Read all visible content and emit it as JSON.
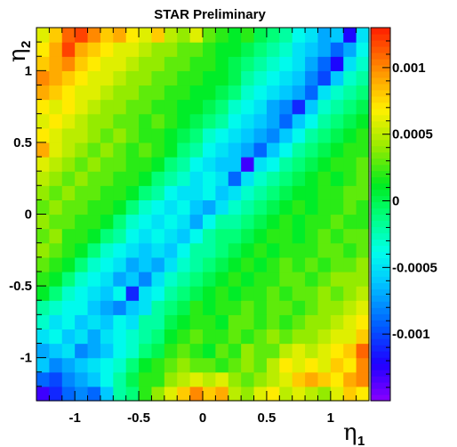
{
  "chart_data": {
    "type": "heatmap",
    "title": "STAR Preliminary",
    "xlabel": {
      "symbol": "η",
      "sub": "1"
    },
    "ylabel": {
      "symbol": "η",
      "sub": "2"
    },
    "xlim": [
      -1.3,
      1.3
    ],
    "ylim": [
      -1.3,
      1.3
    ],
    "xticks": [
      -1,
      -0.5,
      0,
      0.5,
      1
    ],
    "xtick_labels": [
      "-1",
      "-0.5",
      "0",
      "0.5",
      "1"
    ],
    "yticks": [
      -1,
      -0.5,
      0,
      0.5,
      1
    ],
    "ytick_labels": [
      "-1",
      "-0.5",
      "0",
      "0.5",
      "1"
    ],
    "zlim": [
      -0.0015,
      0.0013
    ],
    "colorbar_ticks": [
      0.001,
      0.0005,
      0,
      -0.0005,
      -0.001
    ],
    "colorbar_labels": [
      "0.001",
      "0.0005",
      "0",
      "-0.0005",
      "-0.001"
    ],
    "nbins": 26,
    "grid": false,
    "values_note": "ROOT COLZ 26x26, rows from eta2 = -1.3 (bottom) upward",
    "rows": [
      [
        -0.0013,
        -0.0011,
        -0.0009,
        -0.0008,
        -0.0009,
        -0.0006,
        -0.0002,
        -0.0001,
        0.0002,
        0.0004,
        0.0006,
        0.0008,
        0.001,
        0.0008,
        0.0009,
        0.0005,
        0.0004,
        0.0006,
        0.0007,
        0.0005,
        0.0006,
        0.0005,
        0.0004,
        0.0006,
        0.0008,
        0.0007
      ],
      [
        -0.0009,
        -0.001,
        -0.0008,
        -0.0007,
        -0.0006,
        -0.0004,
        -0.0002,
        0.0,
        0.0002,
        0.0002,
        0.0004,
        0.0005,
        0.0006,
        0.0005,
        0.0006,
        0.0004,
        0.0003,
        0.0004,
        0.0005,
        0.0006,
        0.0008,
        0.0009,
        0.0008,
        0.0007,
        0.0009,
        0.001
      ],
      [
        -0.0006,
        -0.0008,
        -0.0007,
        -0.0006,
        -0.0005,
        -0.0004,
        -0.0003,
        -0.0001,
        0.0001,
        0.0002,
        0.0003,
        0.0004,
        0.0003,
        0.0003,
        0.0002,
        0.0003,
        0.0004,
        0.0003,
        0.0005,
        0.0007,
        0.0006,
        0.0007,
        0.0006,
        0.0008,
        0.0007,
        0.001
      ],
      [
        -0.0007,
        -0.0006,
        -0.0005,
        -0.0008,
        -0.0007,
        -0.0006,
        -0.0004,
        -0.0003,
        -0.0001,
        0.0,
        0.0002,
        0.0003,
        0.0002,
        0.0001,
        0.0003,
        0.0002,
        0.0004,
        0.0003,
        0.0003,
        0.0005,
        0.0006,
        0.0005,
        0.0006,
        0.0007,
        0.0008,
        0.0011
      ],
      [
        -0.0005,
        -0.0004,
        -0.0006,
        -0.0005,
        -0.0007,
        -0.0005,
        -0.0004,
        -0.0003,
        -0.0002,
        -0.0001,
        0.0001,
        0.0002,
        0.0003,
        0.0002,
        0.0002,
        0.0003,
        0.0002,
        0.0003,
        0.0004,
        0.0003,
        0.0004,
        0.0004,
        0.0005,
        0.0006,
        0.0006,
        0.0008
      ],
      [
        -0.0003,
        -0.0005,
        -0.0004,
        -0.0006,
        -0.0005,
        -0.0006,
        -0.0004,
        -0.0005,
        -0.0002,
        -0.0002,
        0.0,
        0.0001,
        0.0002,
        0.0002,
        0.0001,
        0.0003,
        0.0003,
        0.0002,
        0.0003,
        0.0002,
        0.0003,
        0.0004,
        0.0004,
        0.0005,
        0.0006,
        0.0007
      ],
      [
        -0.0002,
        -0.0003,
        -0.0004,
        -0.0004,
        -0.0006,
        -0.0007,
        -0.0008,
        -0.0006,
        -0.0005,
        -0.0002,
        -0.0001,
        0.0,
        0.0002,
        0.0001,
        0.0002,
        0.0002,
        0.0003,
        0.0002,
        0.0003,
        0.0003,
        0.0002,
        0.0003,
        0.0004,
        0.0004,
        0.0005,
        0.0006
      ],
      [
        0.0001,
        -0.0001,
        -0.0003,
        -0.0004,
        -0.0005,
        -0.0006,
        -0.0004,
        -0.0011,
        -0.0005,
        -0.0004,
        -0.0002,
        -0.0001,
        0.0,
        0.0001,
        0.0002,
        0.0001,
        0.0002,
        0.0002,
        0.0003,
        0.0002,
        0.0003,
        0.0003,
        0.0004,
        0.0003,
        0.0004,
        0.0005
      ],
      [
        0.0002,
        0.0001,
        -0.0001,
        -0.0003,
        -0.0004,
        -0.0005,
        -0.0007,
        -0.0006,
        -0.0008,
        -0.0005,
        -0.0003,
        -0.0002,
        -0.0001,
        0.0,
        0.0001,
        0.0002,
        0.0001,
        0.0002,
        0.0002,
        0.0003,
        0.0003,
        0.0002,
        0.0003,
        0.0004,
        0.0004,
        0.0004
      ],
      [
        0.0003,
        0.0002,
        0.0001,
        -0.0001,
        -0.0003,
        -0.0004,
        -0.0005,
        -0.0007,
        -0.0006,
        -0.0007,
        -0.0005,
        -0.0003,
        -0.0002,
        -0.0001,
        0.0,
        0.0001,
        0.0002,
        0.0001,
        0.0002,
        0.0003,
        0.0002,
        0.0003,
        0.0002,
        0.0003,
        0.0003,
        0.0004
      ],
      [
        0.0004,
        0.0003,
        0.0002,
        0.0001,
        -0.0001,
        -0.0003,
        -0.0004,
        -0.0005,
        -0.0006,
        -0.0005,
        -0.0006,
        -0.0004,
        -0.0002,
        -0.0002,
        -0.0001,
        0.0,
        0.0001,
        0.0002,
        0.0001,
        0.0002,
        0.0002,
        0.0002,
        0.0003,
        0.0003,
        0.0002,
        0.0003
      ],
      [
        0.0003,
        0.0004,
        0.0002,
        0.0002,
        0.0001,
        -0.0001,
        -0.0002,
        -0.0004,
        -0.0005,
        -0.0004,
        -0.0005,
        -0.0006,
        -0.0004,
        -0.0002,
        -0.0001,
        -0.0001,
        0.0,
        0.0001,
        0.0002,
        0.0002,
        0.0001,
        0.0002,
        0.0003,
        0.0002,
        0.0003,
        0.0003
      ],
      [
        0.0004,
        0.0003,
        0.0003,
        0.0002,
        0.0002,
        0.0001,
        -0.0001,
        -0.0003,
        -0.0004,
        -0.0005,
        -0.0004,
        -0.0005,
        -0.0007,
        -0.0004,
        -0.0002,
        -0.0002,
        -0.0001,
        0.0,
        0.0001,
        0.0002,
        0.0001,
        0.0002,
        0.0002,
        0.0003,
        0.0002,
        0.0002
      ],
      [
        0.0003,
        0.0004,
        0.0003,
        0.0003,
        0.0002,
        0.0002,
        0.0001,
        -0.0001,
        -0.0003,
        -0.0004,
        -0.0005,
        -0.0004,
        -0.0006,
        -0.0007,
        -0.0005,
        -0.0003,
        -0.0002,
        -0.0001,
        0.0,
        0.0001,
        0.0002,
        0.0001,
        0.0002,
        0.0002,
        0.0003,
        0.0002
      ],
      [
        0.0004,
        0.0003,
        0.0004,
        0.0003,
        0.0003,
        0.0002,
        0.0002,
        0.0001,
        -0.0001,
        -0.0002,
        -0.0004,
        -0.0005,
        -0.0005,
        -0.0004,
        -0.0006,
        -0.0005,
        -0.0003,
        -0.0002,
        -0.0001,
        0.0,
        0.0001,
        0.0001,
        0.0002,
        0.0002,
        0.0003,
        0.0003
      ],
      [
        0.0005,
        0.0004,
        0.0003,
        0.0004,
        0.0003,
        0.0003,
        0.0002,
        0.0002,
        0.0001,
        -0.0001,
        -0.0002,
        -0.0003,
        -0.0005,
        -0.0004,
        -0.0005,
        -0.0009,
        -0.0005,
        -0.0003,
        -0.0002,
        -0.0001,
        0.0,
        0.0001,
        0.0002,
        0.0001,
        0.0002,
        0.0003
      ],
      [
        0.0006,
        0.0005,
        0.0004,
        0.0003,
        0.0004,
        0.0003,
        0.0003,
        0.0002,
        0.0002,
        0.0001,
        -0.0001,
        -0.0002,
        -0.0004,
        -0.0005,
        -0.0006,
        -0.0006,
        -0.0013,
        -0.0005,
        -0.0004,
        -0.0002,
        -0.0001,
        0.0,
        0.0001,
        0.0002,
        0.0002,
        0.0003
      ],
      [
        0.0009,
        0.0006,
        0.0005,
        0.0004,
        0.0003,
        0.0004,
        0.0003,
        0.0002,
        0.0003,
        0.0002,
        0.0001,
        -0.0001,
        -0.0002,
        -0.0004,
        -0.0005,
        -0.0006,
        -0.0007,
        -0.0009,
        -0.0006,
        -0.0004,
        -0.0002,
        -0.0001,
        0.0,
        0.0001,
        0.0002,
        0.0002
      ],
      [
        0.0007,
        0.0006,
        0.0005,
        0.0005,
        0.0004,
        0.0003,
        0.0004,
        0.0003,
        0.0002,
        0.0002,
        0.0001,
        0.0,
        -0.0001,
        -0.0003,
        -0.0004,
        -0.0005,
        -0.0006,
        -0.0007,
        -0.0008,
        -0.0006,
        -0.0004,
        -0.0002,
        -0.0001,
        0.0,
        0.0001,
        0.0002
      ],
      [
        0.0006,
        0.0007,
        0.0006,
        0.0005,
        0.0004,
        0.0004,
        0.0003,
        0.0003,
        0.0002,
        0.0003,
        0.0002,
        0.0001,
        0.0,
        -0.0001,
        -0.0002,
        -0.0004,
        -0.0005,
        -0.0006,
        -0.0007,
        -0.0009,
        -0.0006,
        -0.0004,
        -0.0002,
        -0.0001,
        0.0,
        0.0001
      ],
      [
        0.0007,
        0.0006,
        0.0007,
        0.0006,
        0.0005,
        0.0004,
        0.0004,
        0.0003,
        0.0003,
        0.0002,
        0.0002,
        0.0001,
        0.0001,
        0.0,
        -0.0001,
        -0.0003,
        -0.0004,
        -0.0005,
        -0.0007,
        -0.0008,
        -0.0011,
        -0.0006,
        -0.0003,
        -0.0002,
        -0.0001,
        0.0
      ],
      [
        0.0009,
        0.0008,
        0.0007,
        0.0006,
        0.0006,
        0.0005,
        0.0004,
        0.0004,
        0.0003,
        0.0003,
        0.0002,
        0.0002,
        0.0001,
        0.0001,
        0.0,
        -0.0001,
        -0.0003,
        -0.0004,
        -0.0005,
        -0.0006,
        -0.0007,
        -0.0009,
        -0.0005,
        -0.0003,
        -0.0002,
        -0.0001
      ],
      [
        0.001,
        0.0009,
        0.0008,
        0.0007,
        0.0006,
        0.0006,
        0.0005,
        0.0004,
        0.0004,
        0.0003,
        0.0003,
        0.0002,
        0.0002,
        0.0001,
        0.0001,
        0.0,
        -0.0002,
        -0.0003,
        -0.0004,
        -0.0005,
        -0.0006,
        -0.0008,
        -0.001,
        -0.0006,
        -0.0003,
        -0.0002
      ],
      [
        0.0008,
        0.0009,
        0.001,
        0.0008,
        0.0007,
        0.0006,
        0.0006,
        0.0005,
        0.0004,
        0.0004,
        0.0003,
        0.0003,
        0.0002,
        0.0002,
        0.0001,
        0.0,
        -0.0001,
        -0.0002,
        -0.0003,
        -0.0004,
        -0.0005,
        -0.0007,
        -0.0009,
        -0.0012,
        -0.0005,
        -0.0003
      ],
      [
        0.0007,
        0.0009,
        0.0012,
        0.0009,
        0.0008,
        0.0007,
        0.0006,
        0.0006,
        0.0005,
        0.0004,
        0.0004,
        0.0003,
        0.0003,
        0.0002,
        0.0001,
        0.0001,
        0.0,
        -0.0001,
        -0.0002,
        -0.0003,
        -0.0005,
        -0.0006,
        -0.0007,
        -0.0009,
        -0.0007,
        -0.0004
      ],
      [
        0.0006,
        0.0008,
        0.0011,
        0.0012,
        0.001,
        0.0008,
        0.0009,
        0.0007,
        0.0006,
        0.0008,
        0.0005,
        0.0004,
        0.0006,
        0.0003,
        0.0002,
        0.0001,
        0.0002,
        0.0,
        -0.0001,
        -0.0002,
        -0.0004,
        -0.0005,
        -0.0007,
        -0.0006,
        -0.0012,
        -0.0005
      ]
    ]
  }
}
